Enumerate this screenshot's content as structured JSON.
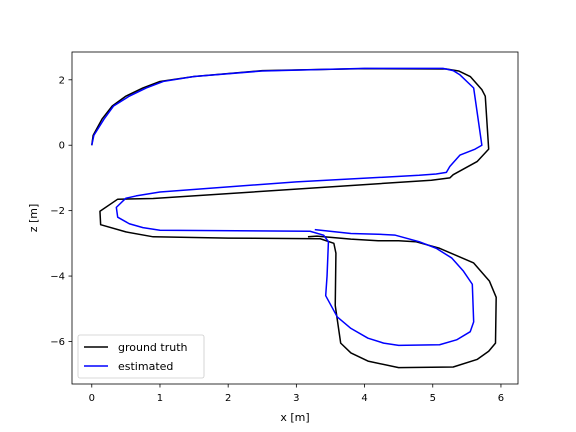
{
  "chart_data": {
    "type": "line",
    "title": "",
    "xlabel": "x [m]",
    "ylabel": "z [m]",
    "xlim": [
      -0.29,
      6.25
    ],
    "ylim": [
      -7.3,
      2.85
    ],
    "xticks": [
      0,
      1,
      2,
      3,
      4,
      5,
      6
    ],
    "yticks": [
      2,
      0,
      -2,
      -4,
      -6
    ],
    "grid": false,
    "legend_position": "lower-left",
    "series": [
      {
        "name": "ground truth",
        "color": "#000000",
        "points": [
          [
            0.0,
            0.0
          ],
          [
            0.02,
            0.3
          ],
          [
            0.15,
            0.8
          ],
          [
            0.3,
            1.2
          ],
          [
            0.5,
            1.5
          ],
          [
            0.75,
            1.75
          ],
          [
            1.0,
            1.95
          ],
          [
            1.5,
            2.1
          ],
          [
            2.5,
            2.28
          ],
          [
            4.0,
            2.34
          ],
          [
            5.2,
            2.33
          ],
          [
            5.38,
            2.27
          ],
          [
            5.55,
            2.1
          ],
          [
            5.72,
            1.7
          ],
          [
            5.77,
            1.5
          ],
          [
            5.82,
            -0.12
          ],
          [
            5.65,
            -0.5
          ],
          [
            5.3,
            -0.9
          ],
          [
            5.25,
            -1.0
          ],
          [
            4.98,
            -1.07
          ],
          [
            0.9,
            -1.63
          ],
          [
            0.38,
            -1.65
          ],
          [
            0.12,
            -2.02
          ],
          [
            0.13,
            -2.43
          ],
          [
            0.5,
            -2.65
          ],
          [
            0.9,
            -2.8
          ],
          [
            2.0,
            -2.84
          ],
          [
            3.35,
            -2.86
          ],
          [
            3.55,
            -3.0
          ],
          [
            3.58,
            -3.3
          ],
          [
            3.57,
            -4.9
          ],
          [
            3.65,
            -6.05
          ],
          [
            3.8,
            -6.35
          ],
          [
            4.05,
            -6.6
          ],
          [
            4.5,
            -6.8
          ],
          [
            5.3,
            -6.78
          ],
          [
            5.65,
            -6.55
          ],
          [
            5.82,
            -6.3
          ],
          [
            5.92,
            -6.05
          ],
          [
            5.93,
            -4.65
          ],
          [
            5.83,
            -4.15
          ],
          [
            5.6,
            -3.6
          ],
          [
            5.1,
            -3.15
          ],
          [
            4.75,
            -2.95
          ],
          [
            4.5,
            -2.92
          ],
          [
            4.2,
            -2.92
          ],
          [
            3.8,
            -2.87
          ],
          [
            3.3,
            -2.78
          ],
          [
            3.17,
            -2.8
          ]
        ]
      },
      {
        "name": "estimated",
        "color": "#0000ff",
        "points": [
          [
            0.0,
            0.0
          ],
          [
            0.03,
            0.3
          ],
          [
            0.18,
            0.8
          ],
          [
            0.32,
            1.2
          ],
          [
            0.55,
            1.5
          ],
          [
            0.8,
            1.75
          ],
          [
            1.05,
            1.95
          ],
          [
            1.5,
            2.1
          ],
          [
            2.5,
            2.27
          ],
          [
            4.0,
            2.35
          ],
          [
            5.15,
            2.35
          ],
          [
            5.3,
            2.28
          ],
          [
            5.4,
            2.15
          ],
          [
            5.6,
            1.75
          ],
          [
            5.72,
            0.0
          ],
          [
            5.62,
            -0.12
          ],
          [
            5.4,
            -0.3
          ],
          [
            5.25,
            -0.65
          ],
          [
            5.2,
            -0.83
          ],
          [
            5.05,
            -0.88
          ],
          [
            4.8,
            -0.92
          ],
          [
            3.0,
            -1.12
          ],
          [
            1.0,
            -1.43
          ],
          [
            0.65,
            -1.55
          ],
          [
            0.5,
            -1.62
          ],
          [
            0.36,
            -1.9
          ],
          [
            0.38,
            -2.2
          ],
          [
            0.55,
            -2.4
          ],
          [
            0.75,
            -2.52
          ],
          [
            1.0,
            -2.6
          ],
          [
            3.2,
            -2.63
          ],
          [
            3.4,
            -2.75
          ],
          [
            3.47,
            -2.95
          ],
          [
            3.45,
            -4.0
          ],
          [
            3.43,
            -4.6
          ],
          [
            3.6,
            -5.25
          ],
          [
            3.8,
            -5.6
          ],
          [
            4.05,
            -5.9
          ],
          [
            4.28,
            -6.05
          ],
          [
            4.5,
            -6.12
          ],
          [
            5.1,
            -6.1
          ],
          [
            5.35,
            -5.95
          ],
          [
            5.55,
            -5.7
          ],
          [
            5.6,
            -5.4
          ],
          [
            5.58,
            -4.25
          ],
          [
            5.45,
            -3.85
          ],
          [
            5.28,
            -3.45
          ],
          [
            5.05,
            -3.15
          ],
          [
            4.8,
            -2.95
          ],
          [
            4.45,
            -2.75
          ],
          [
            4.2,
            -2.72
          ],
          [
            3.8,
            -2.7
          ],
          [
            3.27,
            -2.58
          ]
        ]
      }
    ]
  }
}
